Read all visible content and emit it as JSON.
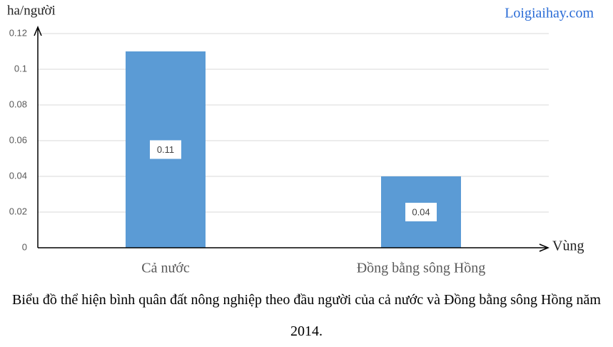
{
  "chart_data": {
    "type": "bar",
    "y_label": "ha/người",
    "x_label": "Vùng",
    "watermark": "Loigiaihay.com",
    "categories": [
      "Cả nước",
      "Đồng bằng sông Hồng"
    ],
    "values": [
      0.11,
      0.04
    ],
    "color": "#5b9bd5",
    "ylim": [
      0,
      0.12
    ],
    "yticks": [
      0,
      0.02,
      0.04,
      0.06,
      0.08,
      0.1,
      0.12
    ],
    "grid": true,
    "caption": "Biểu đồ thể hiện bình quân đất nông nghiệp theo đầu người của cả nước và Đồng bằng sông Hồng năm 2014."
  }
}
